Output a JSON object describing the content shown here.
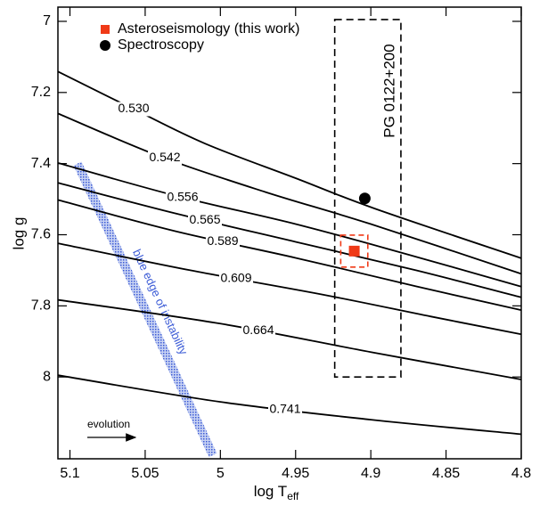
{
  "chart_data": {
    "type": "scatter",
    "x_label": {
      "text": "log T",
      "subscript": "eff"
    },
    "y_label": "log g",
    "xlim": [
      5.108,
      4.8
    ],
    "ylim": [
      6.96,
      8.23
    ],
    "xticks": [
      5.1,
      5.05,
      5,
      4.95,
      4.9,
      4.85,
      4.8
    ],
    "yticks": [
      7,
      7.2,
      7.4,
      7.6,
      7.8,
      8
    ],
    "legend": "upper left",
    "tracks": [
      {
        "name": "0.530",
        "color": "#000000",
        "x": [
          5.108,
          5.058,
          5.01,
          4.95,
          4.897,
          4.8
        ],
        "values": [
          7.141,
          7.246,
          7.344,
          7.441,
          7.527,
          7.666
        ]
      },
      {
        "name": "0.542",
        "color": "#000000",
        "x": [
          5.108,
          5.04,
          4.97,
          4.9,
          4.8
        ],
        "values": [
          7.259,
          7.38,
          7.48,
          7.57,
          7.71
        ]
      },
      {
        "name": "0.556",
        "color": "#000000",
        "x": [
          5.108,
          5.03,
          4.95,
          4.88,
          4.8
        ],
        "values": [
          7.398,
          7.49,
          7.57,
          7.65,
          7.746
        ]
      },
      {
        "name": "0.565",
        "color": "#000000",
        "x": [
          5.108,
          5.03,
          4.95,
          4.87,
          4.8
        ],
        "values": [
          7.454,
          7.54,
          7.62,
          7.7,
          7.776
        ]
      },
      {
        "name": "0.589",
        "color": "#000000",
        "x": [
          5.108,
          5.03,
          4.95,
          4.87,
          4.8
        ],
        "values": [
          7.502,
          7.59,
          7.665,
          7.745,
          7.812
        ]
      },
      {
        "name": "0.609",
        "color": "#000000",
        "x": [
          5.108,
          5.02,
          4.93,
          4.86,
          4.8
        ],
        "values": [
          7.624,
          7.7,
          7.77,
          7.83,
          7.88
        ]
      },
      {
        "name": "0.664",
        "color": "#000000",
        "x": [
          5.108,
          5.0,
          4.9,
          4.8
        ],
        "values": [
          7.783,
          7.85,
          7.93,
          8.007
        ]
      },
      {
        "name": "0.741",
        "color": "#000000",
        "x": [
          5.108,
          5.0,
          4.9,
          4.8
        ],
        "values": [
          7.995,
          8.07,
          8.12,
          8.161
        ]
      }
    ],
    "series": [
      {
        "name": "Asteroseismology (this work)",
        "color": "#f03a17",
        "marker": "square",
        "x": [
          4.911
        ],
        "values": [
          7.646
        ],
        "x_errors": [
          0.009
        ],
        "y_errors": [
          0.045
        ]
      },
      {
        "name": "Spectroscopy",
        "color": "#000000",
        "marker": "circle",
        "x": [
          4.904
        ],
        "values": [
          7.498
        ]
      }
    ],
    "instability_edge": {
      "label": "blue edge of instability",
      "color": "#3b5bd6",
      "x": [
        5.095,
        5.005
      ],
      "values": [
        7.4,
        8.22
      ]
    },
    "box": {
      "label": "PG 0122+200",
      "x": [
        4.924,
        4.88
      ],
      "values": [
        6.995,
        8.0
      ]
    },
    "evolution": {
      "label": "evolution"
    }
  }
}
